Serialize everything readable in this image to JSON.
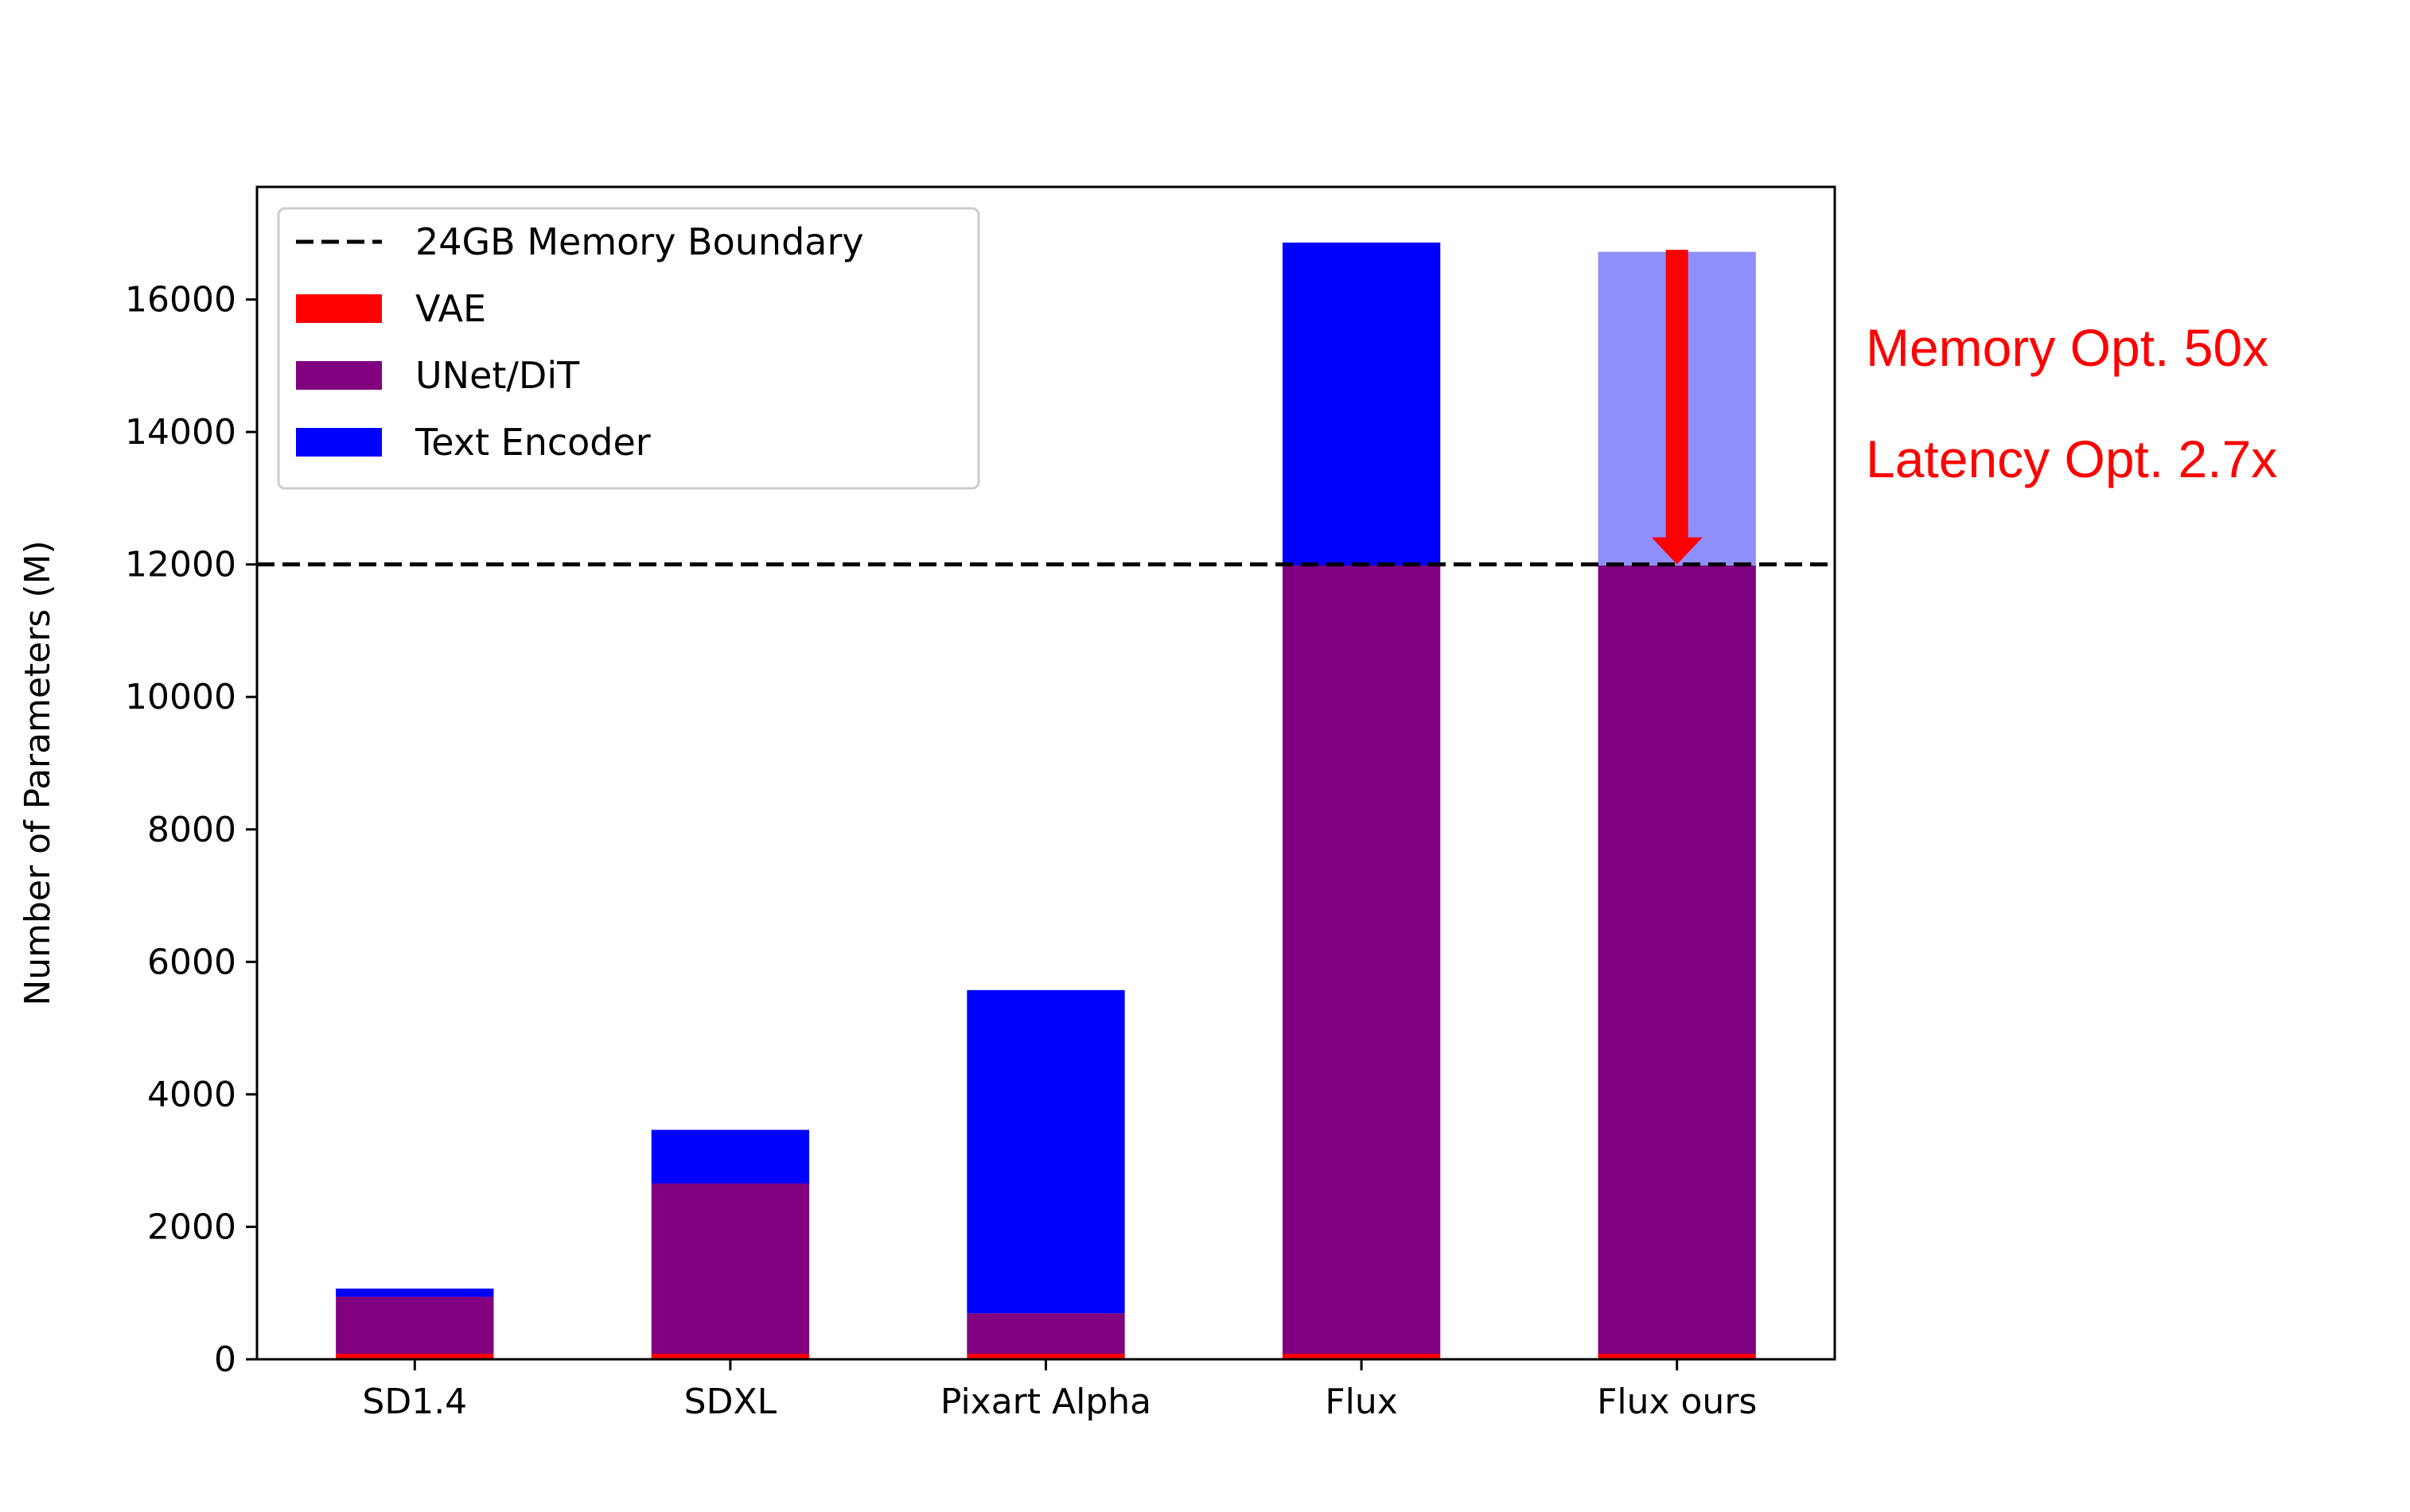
{
  "chart_data": {
    "type": "bar",
    "stacked": true,
    "categories": [
      "SD1.4",
      "SDXL",
      "Pixart Alpha",
      "Flux",
      "Flux ours"
    ],
    "series": [
      {
        "name": "VAE",
        "color": "#ff0000",
        "values": [
          84,
          84,
          84,
          84,
          84
        ]
      },
      {
        "name": "UNet/DiT",
        "color": "#800080",
        "values": [
          860,
          2570,
          610,
          11900,
          11900
        ]
      },
      {
        "name": "Text Encoder",
        "color": "#0000ff",
        "values": [
          123,
          810,
          4880,
          4876,
          4736
        ]
      }
    ],
    "reference_line": {
      "name": "24GB Memory Boundary",
      "y": 12000,
      "style": "dashed",
      "color": "#000000"
    },
    "highlight": {
      "category": "Flux ours",
      "series": "Text Encoder",
      "faded_color": "#8f8ffc"
    },
    "ylabel": "Number of Parameters (M)",
    "xlabel": "",
    "ylim": [
      0,
      17700
    ],
    "yticks": [
      0,
      2000,
      4000,
      6000,
      8000,
      10000,
      12000,
      14000,
      16000
    ],
    "grid": false,
    "legend_position": "top-left",
    "annotations": [
      {
        "text": "Memory Opt. 50x",
        "color": "#ff0000"
      },
      {
        "text": "Latency Opt. 2.7x",
        "color": "#ff0000"
      }
    ],
    "arrow": {
      "category": "Flux ours",
      "from_y": 16750,
      "to_y": 12000,
      "color": "#ff0000"
    }
  }
}
